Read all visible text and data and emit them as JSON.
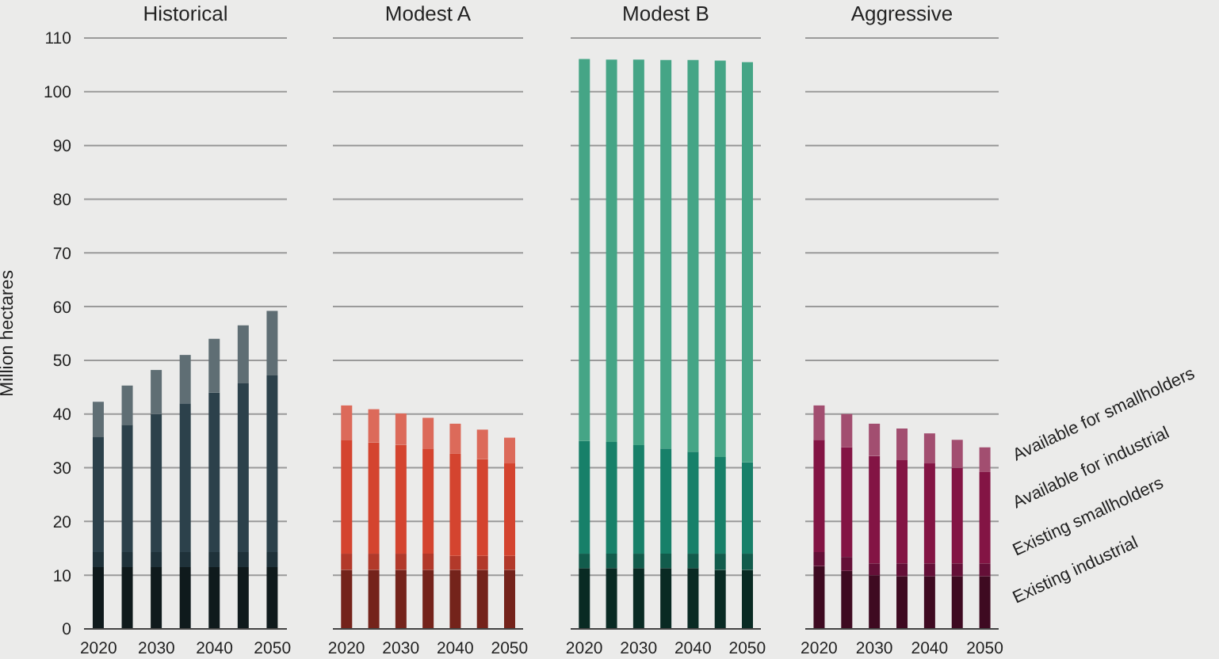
{
  "chart_data": [
    {
      "type": "bar",
      "title": "Historical",
      "ylabel": "Million hectares",
      "stacked": true,
      "grid": "y",
      "ylim": [
        0,
        110
      ],
      "yticks": [
        0,
        10,
        20,
        30,
        40,
        50,
        60,
        70,
        80,
        90,
        100,
        110
      ],
      "categories": [
        "2020",
        null,
        "2030",
        null,
        "2040",
        null,
        "2050"
      ],
      "series": [
        {
          "color": "#0f1a1c",
          "values": [
            11.5,
            11.5,
            11.5,
            11.5,
            11.5,
            11.5,
            11.5
          ]
        },
        {
          "color": "#1f323a",
          "values": [
            2.8,
            2.8,
            2.8,
            2.8,
            2.8,
            2.8,
            2.8
          ]
        },
        {
          "color": "#2c414b",
          "values": [
            21.5,
            23.7,
            25.7,
            27.7,
            29.7,
            31.4,
            32.9
          ]
        },
        {
          "color": "#5f6e74",
          "values": [
            6.5,
            7.3,
            8.2,
            9,
            10,
            10.8,
            12
          ]
        }
      ]
    },
    {
      "type": "bar",
      "title": "Modest A",
      "stacked": true,
      "grid": "y",
      "tick_labels": "x",
      "ylim": [
        0,
        110
      ],
      "yticks": [
        0,
        10,
        20,
        30,
        40,
        50,
        60,
        70,
        80,
        90,
        100,
        110
      ],
      "categories": [
        "2020",
        null,
        "2030",
        null,
        "2040",
        null,
        "2050"
      ],
      "series": [
        {
          "color": "#74231b",
          "values": [
            11,
            11,
            11,
            11,
            11,
            11,
            11
          ]
        },
        {
          "color": "#b2392a",
          "values": [
            3,
            3,
            3,
            3,
            2.6,
            2.6,
            2.6
          ]
        },
        {
          "color": "#d4442f",
          "values": [
            21.2,
            20.7,
            20.3,
            19.6,
            19,
            18,
            17.2
          ]
        },
        {
          "color": "#dc6a5a",
          "values": [
            6.4,
            6.2,
            5.8,
            5.7,
            5.6,
            5.5,
            4.8
          ]
        }
      ]
    },
    {
      "type": "bar",
      "title": "Modest B",
      "stacked": true,
      "grid": "y",
      "tick_labels": "x",
      "ylim": [
        0,
        110
      ],
      "yticks": [
        0,
        10,
        20,
        30,
        40,
        50,
        60,
        70,
        80,
        90,
        100,
        110
      ],
      "categories": [
        "2020",
        null,
        "2030",
        null,
        "2040",
        null,
        "2050"
      ],
      "series": [
        {
          "color": "#092a23",
          "values": [
            11.3,
            11.3,
            11.3,
            11.3,
            11.3,
            11,
            11
          ]
        },
        {
          "color": "#125c4c",
          "values": [
            2.7,
            2.7,
            2.7,
            2.7,
            2.7,
            3,
            3
          ]
        },
        {
          "color": "#178069",
          "values": [
            21,
            20.8,
            20.2,
            19.6,
            19,
            18,
            17
          ]
        },
        {
          "color": "#45a586",
          "values": [
            71.1,
            71.2,
            71.8,
            72.3,
            72.9,
            73.8,
            74.5
          ]
        }
      ]
    },
    {
      "type": "bar",
      "title": "Aggressive",
      "stacked": true,
      "grid": "y",
      "tick_labels": "x",
      "ylim": [
        0,
        110
      ],
      "yticks": [
        0,
        10,
        20,
        30,
        40,
        50,
        60,
        70,
        80,
        90,
        100,
        110
      ],
      "categories": [
        "2020",
        null,
        "2030",
        null,
        "2040",
        null,
        "2050"
      ],
      "series": [
        {
          "name": "Existing industrial",
          "color": "#3e0a21",
          "values": [
            11.7,
            10.8,
            10,
            9.8,
            9.8,
            9.8,
            9.8
          ]
        },
        {
          "name": "Existing smallholders",
          "color": "#640f37",
          "values": [
            2.6,
            2.6,
            2.2,
            2.4,
            2.4,
            2.4,
            2.4
          ]
        },
        {
          "name": "Available for industrial",
          "color": "#831444",
          "values": [
            20.9,
            20.4,
            20,
            19.2,
            18.6,
            17.8,
            17
          ]
        },
        {
          "name": "Available for smallholders",
          "color": "#a24e70",
          "values": [
            6.4,
            6.2,
            6,
            5.9,
            5.6,
            5.2,
            4.6
          ]
        }
      ]
    }
  ]
}
